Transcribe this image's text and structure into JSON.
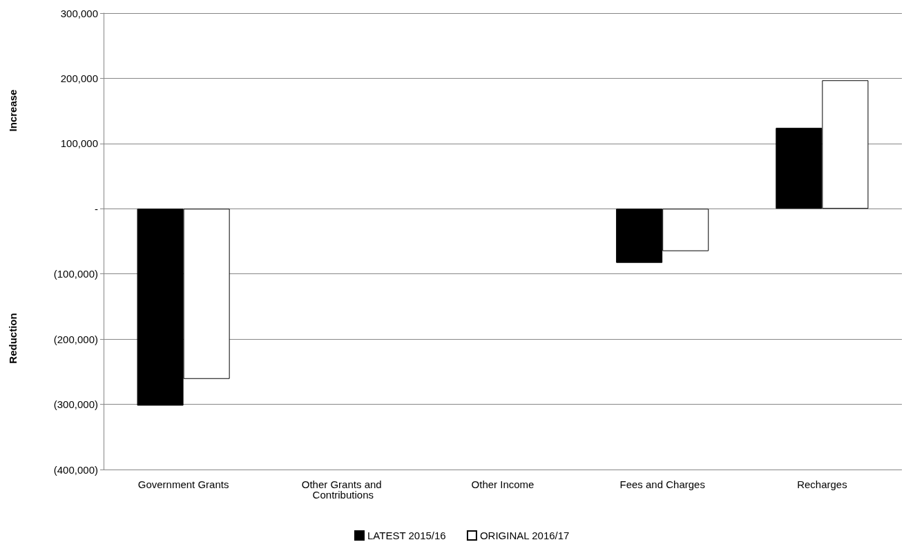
{
  "chart_data": {
    "type": "bar",
    "categories": [
      "Government Grants",
      "Other Grants and Contributions",
      "Other Income",
      "Fees and Charges",
      "Recharges"
    ],
    "series": [
      {
        "name": "LATEST 2015/16",
        "color": "#000000",
        "values": [
          -302000,
          null,
          null,
          -83000,
          124000
        ]
      },
      {
        "name": "ORIGINAL 2016/17",
        "color": "#ffffff",
        "values": [
          -261000,
          null,
          null,
          -65000,
          197000
        ]
      }
    ],
    "ylabel": "Increase",
    "annotations": [
      "Reduction"
    ],
    "ylim": [
      -400000,
      300000
    ],
    "yticks": [
      {
        "value": -400000,
        "label": "(400,000)"
      },
      {
        "value": -300000,
        "label": "(300,000)"
      },
      {
        "value": -200000,
        "label": "(200,000)"
      },
      {
        "value": -100000,
        "label": "(100,000)"
      },
      {
        "value": 0,
        "label": "-"
      },
      {
        "value": 100000,
        "label": "100,000"
      },
      {
        "value": 200000,
        "label": "200,000"
      },
      {
        "value": 300000,
        "label": "300,000"
      }
    ],
    "grid": "y",
    "legend": "bottom"
  }
}
